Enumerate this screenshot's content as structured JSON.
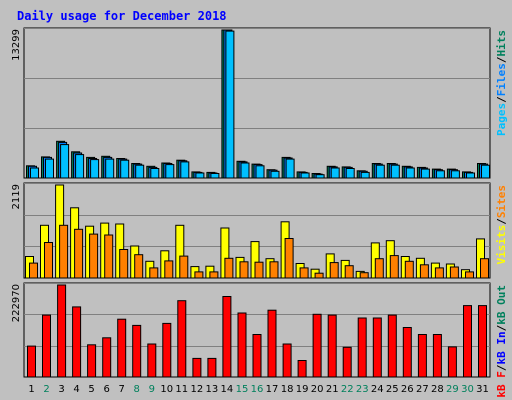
{
  "title": "Daily usage for December 2018",
  "colors": {
    "background": "#c0c0c0",
    "title": "#0000ff",
    "pages": "#00c0ff",
    "files": "#0080ff",
    "hits": "#00805c",
    "visits": "#ffff00",
    "sites": "#ff8000",
    "kbout": "#00805c",
    "kbin": "#0000ff",
    "kbf": "#ff0000",
    "weekend": "#00805c",
    "weekday": "#000000"
  },
  "chart_data": [
    {
      "type": "bar",
      "name": "requests",
      "legend": [
        {
          "text": "Pages",
          "color": "#00c0ff"
        },
        {
          "text": "/",
          "color": "#000000"
        },
        {
          "text": "Files",
          "color": "#0080ff"
        },
        {
          "text": "/",
          "color": "#000000"
        },
        {
          "text": "Hits",
          "color": "#00805c"
        }
      ],
      "ymax_label": "13299",
      "ylim": [
        0,
        13299
      ],
      "categories": [
        "1",
        "2",
        "3",
        "4",
        "5",
        "6",
        "7",
        "8",
        "9",
        "10",
        "11",
        "12",
        "13",
        "14",
        "15",
        "16",
        "17",
        "18",
        "19",
        "20",
        "21",
        "22",
        "23",
        "24",
        "25",
        "26",
        "27",
        "28",
        "29",
        "30",
        "31"
      ],
      "series": [
        {
          "name": "Hits",
          "color": "#00805c",
          "values": [
            1100,
            1900,
            3300,
            2350,
            1850,
            1950,
            1750,
            1300,
            1050,
            1350,
            1600,
            550,
            500,
            13299,
            1500,
            1250,
            750,
            1850,
            550,
            400,
            1050,
            1000,
            650,
            1300,
            1300,
            1050,
            950,
            800,
            800,
            550,
            1300
          ]
        },
        {
          "name": "Files",
          "color": "#0080ff",
          "values": [
            1050,
            1850,
            3200,
            2250,
            1750,
            1850,
            1700,
            1250,
            950,
            1300,
            1550,
            500,
            450,
            13299,
            1450,
            1200,
            700,
            1800,
            500,
            350,
            1000,
            950,
            600,
            1250,
            1250,
            1000,
            900,
            750,
            750,
            500,
            1250
          ]
        },
        {
          "name": "Pages",
          "color": "#00c0ff",
          "values": [
            900,
            1700,
            3000,
            2100,
            1650,
            1700,
            1600,
            1150,
            850,
            1200,
            1450,
            450,
            400,
            13200,
            1350,
            1100,
            600,
            1700,
            450,
            300,
            900,
            850,
            500,
            1150,
            1150,
            900,
            800,
            650,
            650,
            450,
            1150
          ]
        }
      ]
    },
    {
      "type": "bar",
      "name": "visitors",
      "legend": [
        {
          "text": "Visits",
          "color": "#ffff00"
        },
        {
          "text": "/",
          "color": "#000000"
        },
        {
          "text": "Sites",
          "color": "#ff8000"
        }
      ],
      "ymax_label": "2119",
      "ylim": [
        0,
        2119
      ],
      "categories": [
        "1",
        "2",
        "3",
        "4",
        "5",
        "6",
        "7",
        "8",
        "9",
        "10",
        "11",
        "12",
        "13",
        "14",
        "15",
        "16",
        "17",
        "18",
        "19",
        "20",
        "21",
        "22",
        "23",
        "24",
        "25",
        "26",
        "27",
        "28",
        "29",
        "30",
        "31"
      ],
      "series": [
        {
          "name": "Visits",
          "color": "#ffff00",
          "values": [
            490,
            1200,
            2119,
            1600,
            1180,
            1250,
            1230,
            730,
            380,
            620,
            1200,
            260,
            270,
            1140,
            470,
            830,
            440,
            1280,
            330,
            200,
            550,
            400,
            150,
            800,
            850,
            490,
            450,
            340,
            320,
            190,
            890
          ]
        },
        {
          "name": "Sites",
          "color": "#ff8000",
          "values": [
            340,
            810,
            1200,
            1110,
            1000,
            980,
            650,
            530,
            230,
            390,
            500,
            140,
            140,
            450,
            370,
            360,
            370,
            900,
            230,
            110,
            350,
            280,
            120,
            440,
            510,
            380,
            300,
            230,
            250,
            140,
            440
          ]
        }
      ]
    },
    {
      "type": "bar",
      "name": "traffic",
      "legend": [
        {
          "text": "kB F",
          "color": "#ff0000"
        },
        {
          "text": "/",
          "color": "#000000"
        },
        {
          "text": "kB In",
          "color": "#0000ff"
        },
        {
          "text": "/",
          "color": "#000000"
        },
        {
          "text": "kB Out",
          "color": "#00805c"
        }
      ],
      "ymax_label": "222970",
      "ylim": [
        0,
        222970
      ],
      "categories": [
        "1",
        "2",
        "3",
        "4",
        "5",
        "6",
        "7",
        "8",
        "9",
        "10",
        "11",
        "12",
        "13",
        "14",
        "15",
        "16",
        "17",
        "18",
        "19",
        "20",
        "21",
        "22",
        "23",
        "24",
        "25",
        "26",
        "27",
        "28",
        "29",
        "30",
        "31"
      ],
      "series": [
        {
          "name": "kB F",
          "color": "#ff0000",
          "values": [
            75000,
            150000,
            222970,
            170000,
            78000,
            95000,
            140000,
            125000,
            80000,
            130000,
            185000,
            45000,
            45000,
            195000,
            155000,
            103000,
            162000,
            80000,
            40000,
            152000,
            150000,
            72000,
            143000,
            143000,
            150000,
            120000,
            103000,
            103000,
            73000,
            173000,
            173000
          ]
        }
      ]
    }
  ],
  "x_labels": [
    {
      "text": "1",
      "weekend": false
    },
    {
      "text": "2",
      "weekend": true
    },
    {
      "text": "3",
      "weekend": false
    },
    {
      "text": "4",
      "weekend": false
    },
    {
      "text": "5",
      "weekend": false
    },
    {
      "text": "6",
      "weekend": false
    },
    {
      "text": "7",
      "weekend": false
    },
    {
      "text": "8",
      "weekend": true
    },
    {
      "text": "9",
      "weekend": true
    },
    {
      "text": "10",
      "weekend": false
    },
    {
      "text": "11",
      "weekend": false
    },
    {
      "text": "12",
      "weekend": false
    },
    {
      "text": "13",
      "weekend": false
    },
    {
      "text": "14",
      "weekend": false
    },
    {
      "text": "15",
      "weekend": true
    },
    {
      "text": "16",
      "weekend": true
    },
    {
      "text": "17",
      "weekend": false
    },
    {
      "text": "18",
      "weekend": false
    },
    {
      "text": "19",
      "weekend": false
    },
    {
      "text": "20",
      "weekend": false
    },
    {
      "text": "21",
      "weekend": false
    },
    {
      "text": "22",
      "weekend": true
    },
    {
      "text": "23",
      "weekend": true
    },
    {
      "text": "24",
      "weekend": false
    },
    {
      "text": "25",
      "weekend": false
    },
    {
      "text": "26",
      "weekend": false
    },
    {
      "text": "27",
      "weekend": false
    },
    {
      "text": "28",
      "weekend": false
    },
    {
      "text": "29",
      "weekend": true
    },
    {
      "text": "30",
      "weekend": true
    },
    {
      "text": "31",
      "weekend": false
    }
  ]
}
